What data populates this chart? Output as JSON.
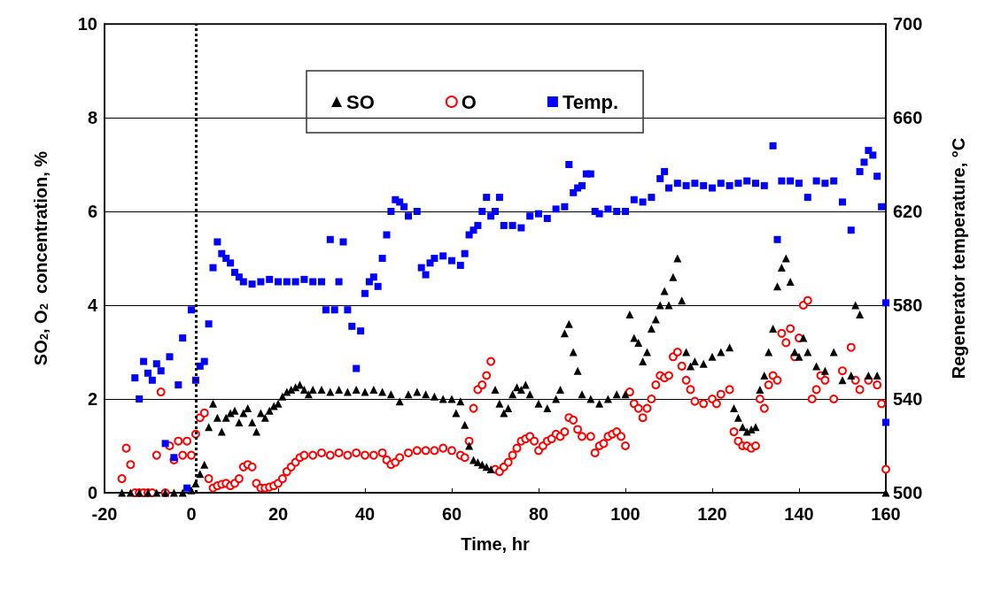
{
  "chart_data": {
    "type": "scatter",
    "xlabel": "Time, hr",
    "ylabel": "SO$_{2}$, O$_{2}$  concentration, %",
    "y2label": "Regenerator temperature, °C",
    "xlim": [
      -20,
      160
    ],
    "xticks": [
      -20,
      0,
      20,
      40,
      60,
      80,
      100,
      120,
      140,
      160
    ],
    "ylim": [
      0,
      10
    ],
    "yticks": [
      0,
      2,
      4,
      6,
      8,
      10
    ],
    "y2lim": [
      500,
      700
    ],
    "y2ticks": [
      500,
      540,
      580,
      620,
      660,
      700
    ],
    "grid": "y",
    "legend": "top",
    "ref_lines": [
      {
        "axis": "x",
        "value": 1,
        "color": "#000000",
        "line_style": "dotted"
      }
    ],
    "series": [
      {
        "name": "SO",
        "color": "#000000",
        "marker": "triangle",
        "x": [
          -16,
          -14,
          -12,
          -10,
          -8,
          -6,
          -4,
          -2,
          0,
          1,
          2,
          3,
          4,
          5,
          6,
          7,
          8,
          9,
          10,
          11,
          12,
          13,
          14,
          15,
          16,
          17,
          18,
          19,
          20,
          21,
          22,
          23,
          24,
          25,
          26,
          27,
          28,
          30,
          32,
          34,
          36,
          38,
          40,
          42,
          44,
          46,
          48,
          50,
          52,
          54,
          56,
          58,
          60,
          61,
          62,
          63,
          64,
          65,
          66,
          67,
          68,
          69,
          70,
          71,
          72,
          73,
          74,
          75,
          76,
          77,
          78,
          80,
          82,
          84,
          85,
          86,
          87,
          88,
          89,
          90,
          92,
          94,
          96,
          98,
          100,
          101,
          102,
          103,
          104,
          105,
          106,
          107,
          108,
          109,
          110,
          111,
          112,
          113,
          114,
          115,
          116,
          118,
          120,
          122,
          124,
          125,
          126,
          127,
          128,
          129,
          130,
          131,
          132,
          133,
          134,
          135,
          136,
          137,
          138,
          139,
          140,
          141,
          142,
          144,
          146,
          148,
          150,
          152,
          153,
          154,
          156,
          158,
          160
        ],
        "values": [
          0,
          0,
          0,
          0,
          0,
          0,
          0,
          0,
          0.05,
          0.2,
          0.4,
          0.6,
          1.4,
          1.9,
          1.6,
          1.3,
          1.6,
          1.7,
          1.75,
          1.5,
          1.7,
          1.8,
          1.5,
          1.3,
          1.7,
          1.6,
          1.75,
          1.85,
          1.9,
          2.05,
          2.15,
          2.2,
          2.25,
          2.3,
          2.2,
          2.1,
          2.2,
          2.2,
          2.15,
          2.2,
          2.15,
          2.2,
          2.15,
          2.2,
          2.15,
          2.1,
          1.95,
          2.1,
          2.15,
          2.1,
          2.05,
          2.0,
          2.0,
          1.7,
          1.95,
          1.45,
          1.0,
          0.7,
          0.65,
          0.6,
          0.55,
          0.5,
          2.2,
          1.9,
          1.7,
          1.8,
          2.1,
          2.25,
          2.2,
          2.3,
          2.1,
          1.9,
          1.8,
          2.0,
          2.2,
          3.4,
          3.6,
          3.0,
          2.6,
          2.1,
          2.0,
          1.9,
          2.0,
          2.1,
          2.1,
          3.8,
          3.3,
          3.2,
          2.8,
          3.0,
          3.5,
          3.7,
          4.0,
          4.3,
          4.0,
          4.6,
          5.0,
          4.1,
          3.0,
          2.7,
          2.8,
          2.75,
          2.9,
          3.0,
          3.1,
          1.8,
          1.6,
          1.4,
          1.3,
          1.35,
          1.4,
          2.2,
          2.5,
          3.0,
          3.5,
          4.4,
          4.8,
          5.0,
          4.5,
          3.0,
          2.9,
          3.3,
          3.0,
          2.7,
          2.6,
          3.0,
          2.4,
          2.5,
          4.0,
          3.8,
          2.5,
          2.5,
          0.0
        ]
      },
      {
        "name": "O",
        "color": "#ff0000",
        "marker": "circle",
        "x": [
          -16,
          -15,
          -14,
          -13,
          -12,
          -11,
          -10,
          -9,
          -8,
          -7,
          -6,
          -5,
          -4,
          -3,
          -2,
          -1,
          0,
          1,
          2,
          3,
          4,
          5,
          6,
          7,
          8,
          9,
          10,
          11,
          12,
          13,
          14,
          15,
          16,
          17,
          18,
          19,
          20,
          21,
          22,
          23,
          24,
          25,
          26,
          28,
          30,
          32,
          34,
          36,
          38,
          40,
          42,
          44,
          45,
          46,
          47,
          48,
          50,
          52,
          54,
          56,
          58,
          60,
          62,
          63,
          64,
          65,
          66,
          67,
          68,
          69,
          70,
          71,
          72,
          73,
          74,
          75,
          76,
          77,
          78,
          79,
          80,
          81,
          82,
          83,
          84,
          85,
          86,
          87,
          88,
          89,
          90,
          92,
          93,
          94,
          95,
          96,
          97,
          98,
          99,
          100,
          101,
          102,
          103,
          104,
          105,
          106,
          107,
          108,
          109,
          110,
          111,
          112,
          113,
          114,
          115,
          116,
          118,
          120,
          121,
          122,
          124,
          125,
          126,
          127,
          128,
          129,
          130,
          131,
          132,
          133,
          134,
          135,
          136,
          137,
          138,
          139,
          140,
          141,
          142,
          143,
          144,
          145,
          146,
          148,
          150,
          152,
          153,
          154,
          156,
          158,
          159,
          160
        ],
        "values": [
          0.3,
          0.95,
          0.6,
          0,
          0,
          0,
          0,
          0,
          0.8,
          2.15,
          0,
          1.0,
          0.7,
          1.1,
          0.8,
          1.1,
          0.8,
          1.25,
          1.6,
          1.7,
          0.3,
          0.1,
          0.15,
          0.18,
          0.2,
          0.15,
          0.2,
          0.3,
          0.55,
          0.6,
          0.55,
          0.2,
          0.1,
          0.1,
          0.12,
          0.15,
          0.2,
          0.3,
          0.45,
          0.55,
          0.65,
          0.75,
          0.8,
          0.8,
          0.85,
          0.8,
          0.85,
          0.8,
          0.85,
          0.8,
          0.8,
          0.85,
          0.7,
          0.6,
          0.65,
          0.75,
          0.85,
          0.9,
          0.9,
          0.9,
          0.95,
          0.9,
          0.8,
          0.75,
          1.1,
          1.8,
          2.2,
          2.3,
          2.5,
          2.8,
          0.5,
          0.45,
          0.55,
          0.65,
          0.8,
          0.95,
          1.1,
          1.15,
          1.2,
          1.1,
          0.9,
          1.0,
          1.1,
          1.15,
          1.25,
          1.2,
          1.3,
          1.6,
          1.55,
          1.35,
          1.2,
          1.2,
          0.85,
          1.0,
          1.05,
          1.2,
          1.25,
          1.3,
          1.2,
          1.0,
          2.15,
          1.9,
          1.8,
          1.6,
          1.8,
          2.0,
          2.3,
          2.5,
          2.45,
          2.5,
          2.9,
          3.0,
          2.7,
          2.4,
          2.2,
          1.95,
          1.9,
          2.0,
          1.9,
          2.1,
          2.2,
          1.3,
          1.1,
          1.0,
          1.0,
          0.95,
          1.0,
          2.0,
          1.8,
          2.3,
          2.5,
          2.4,
          3.4,
          3.2,
          3.5,
          2.9,
          3.3,
          4.0,
          4.1,
          2.0,
          2.2,
          2.5,
          2.4,
          2.0,
          2.6,
          3.1,
          2.4,
          2.2,
          2.4,
          2.3,
          1.9,
          0.5
        ]
      },
      {
        "name": "Temp.",
        "color": "#0000ff",
        "marker": "square",
        "axis": "y2",
        "x": [
          -13,
          -12,
          -11,
          -10,
          -9,
          -8,
          -7,
          -6,
          -5,
          -4,
          -3,
          -2,
          -1,
          0,
          1,
          2,
          3,
          4,
          5,
          6,
          7,
          8,
          9,
          10,
          11,
          12,
          14,
          16,
          18,
          20,
          22,
          24,
          26,
          28,
          30,
          31,
          32,
          33,
          34,
          35,
          36,
          37,
          38,
          39,
          40,
          41,
          42,
          43,
          44,
          45,
          46,
          47,
          48,
          49,
          50,
          52,
          53,
          54,
          55,
          56,
          58,
          60,
          62,
          63,
          64,
          65,
          66,
          67,
          68,
          69,
          70,
          71,
          72,
          74,
          76,
          78,
          80,
          82,
          84,
          86,
          87,
          88,
          89,
          90,
          91,
          92,
          93,
          94,
          96,
          98,
          100,
          102,
          104,
          106,
          108,
          109,
          110,
          112,
          114,
          116,
          118,
          120,
          122,
          124,
          126,
          128,
          130,
          132,
          134,
          135,
          136,
          138,
          140,
          142,
          144,
          146,
          148,
          150,
          152,
          154,
          155,
          156,
          157,
          158,
          159,
          160,
          160
        ],
        "values": [
          549,
          540,
          556,
          551,
          548,
          555,
          552,
          521,
          558,
          515,
          546,
          566,
          502,
          578,
          548,
          554,
          556,
          572,
          596,
          607,
          602,
          600,
          598,
          594,
          592,
          590,
          589,
          590,
          591,
          590,
          590,
          590,
          591,
          590,
          590,
          578,
          608,
          578,
          590,
          607,
          578,
          571,
          553,
          569,
          585,
          590,
          592,
          588,
          600,
          610,
          620,
          625,
          624,
          622,
          618,
          620,
          596,
          593,
          598,
          600,
          601,
          599,
          597,
          602,
          610,
          612,
          614,
          620,
          626,
          618,
          620,
          626,
          614,
          614,
          613,
          618,
          619,
          617,
          621,
          622,
          640,
          628,
          630,
          631,
          636,
          636,
          620,
          619,
          621,
          620,
          620,
          625,
          624,
          626,
          634,
          637,
          630,
          632,
          631,
          632,
          631,
          630,
          632,
          631,
          632,
          633,
          632,
          631,
          648,
          608,
          633,
          633,
          632,
          626,
          633,
          632,
          633,
          624,
          612,
          637,
          641,
          646,
          644,
          635,
          622,
          581,
          530
        ]
      }
    ]
  }
}
